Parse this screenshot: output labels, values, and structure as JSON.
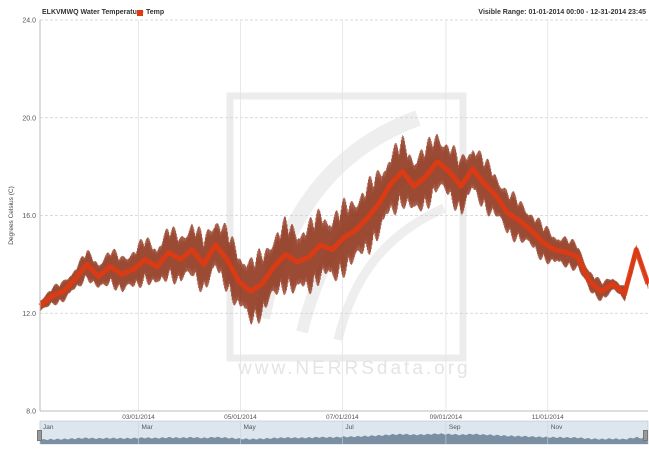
{
  "header": {
    "station": "ELKVMWQ Water Temperature",
    "series_label": "Temp",
    "visible_range": "Visible Range: 01-01-2014 00:00 - 12-31-2014 23:45"
  },
  "watermark": "www.NERRSdata.org",
  "colors": {
    "series": "#e03a12",
    "series_dark": "#8a2a10",
    "grid": "#cfcfcf",
    "navigator_fill": "#6a7f95",
    "navigator_bg": "#dde6ef"
  },
  "chart_data": {
    "type": "line",
    "ylabel": "Degrees Celsius (C)",
    "ylim": [
      8.0,
      24.0
    ],
    "yticks": [
      "8.0",
      "12.0",
      "16.0",
      "20.0",
      "24.0"
    ],
    "xlim": [
      "2014-01-01",
      "2014-12-31"
    ],
    "xticks": [
      "03/01/2014",
      "05/01/2014",
      "07/01/2014",
      "09/01/2014",
      "11/01/2014"
    ],
    "grid": true,
    "series": [
      {
        "name": "Temp",
        "points": [
          [
            "2014-01-01",
            12.3
          ],
          [
            "2014-01-08",
            12.7
          ],
          [
            "2014-01-15",
            12.9
          ],
          [
            "2014-01-22",
            13.4
          ],
          [
            "2014-01-29",
            14.0
          ],
          [
            "2014-02-05",
            13.5
          ],
          [
            "2014-02-12",
            13.9
          ],
          [
            "2014-02-19",
            13.6
          ],
          [
            "2014-02-26",
            13.8
          ],
          [
            "2014-03-05",
            14.2
          ],
          [
            "2014-03-12",
            13.9
          ],
          [
            "2014-03-19",
            14.5
          ],
          [
            "2014-03-26",
            14.2
          ],
          [
            "2014-04-02",
            14.6
          ],
          [
            "2014-04-09",
            14.0
          ],
          [
            "2014-04-16",
            14.8
          ],
          [
            "2014-04-23",
            14.2
          ],
          [
            "2014-04-30",
            13.3
          ],
          [
            "2014-05-07",
            12.9
          ],
          [
            "2014-05-14",
            13.2
          ],
          [
            "2014-05-21",
            13.9
          ],
          [
            "2014-05-28",
            14.4
          ],
          [
            "2014-06-04",
            14.1
          ],
          [
            "2014-06-11",
            14.3
          ],
          [
            "2014-06-18",
            14.8
          ],
          [
            "2014-06-25",
            14.6
          ],
          [
            "2014-07-02",
            15.1
          ],
          [
            "2014-07-09",
            15.4
          ],
          [
            "2014-07-16",
            15.9
          ],
          [
            "2014-07-23",
            16.5
          ],
          [
            "2014-07-30",
            17.3
          ],
          [
            "2014-08-06",
            17.8
          ],
          [
            "2014-08-13",
            17.2
          ],
          [
            "2014-08-20",
            17.6
          ],
          [
            "2014-08-27",
            18.2
          ],
          [
            "2014-09-03",
            17.8
          ],
          [
            "2014-09-10",
            17.2
          ],
          [
            "2014-09-17",
            17.9
          ],
          [
            "2014-09-24",
            17.3
          ],
          [
            "2014-10-01",
            16.8
          ],
          [
            "2014-10-08",
            16.1
          ],
          [
            "2014-10-15",
            15.8
          ],
          [
            "2014-10-22",
            15.4
          ],
          [
            "2014-10-29",
            14.9
          ],
          [
            "2014-11-05",
            14.6
          ],
          [
            "2014-11-12",
            14.5
          ],
          [
            "2014-11-19",
            14.3
          ],
          [
            "2014-11-26",
            13.3
          ],
          [
            "2014-12-03",
            12.9
          ],
          [
            "2014-12-10",
            13.2
          ],
          [
            "2014-12-17",
            12.8
          ],
          [
            "2014-12-24",
            14.6
          ],
          [
            "2014-12-31",
            13.2
          ]
        ]
      }
    ]
  },
  "navigator": {
    "months": [
      "Jan",
      "Mar",
      "May",
      "Jul",
      "Sep",
      "Nov"
    ]
  }
}
